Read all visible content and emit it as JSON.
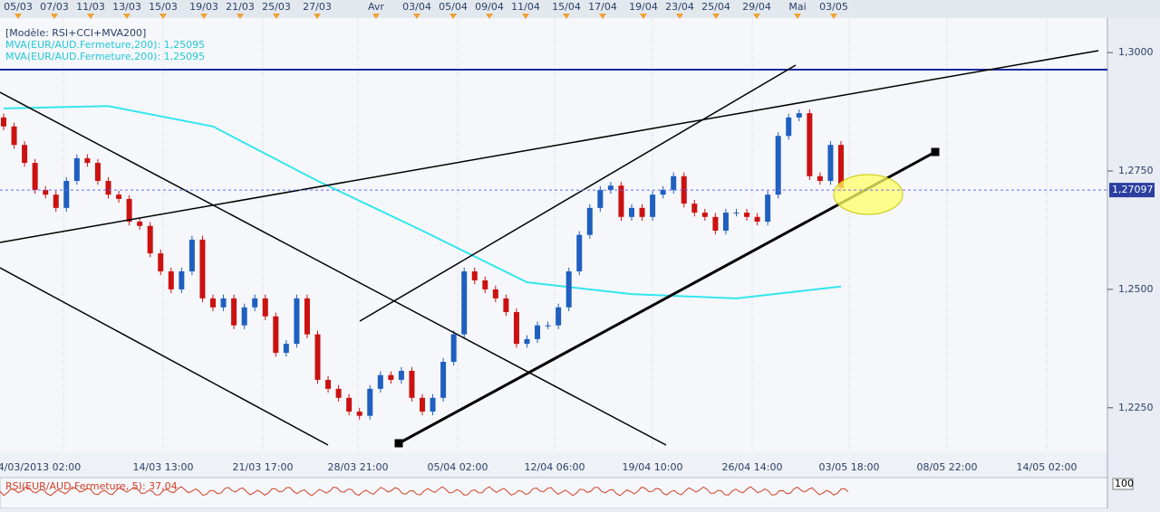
{
  "chart_data": {
    "type": "candlestick",
    "header": [
      "[Modèle: RSI+CCI+MVA200]",
      "MVA(EUR/AUD.Fermeture,200): 1,25095",
      "MVA(EUR/AUD.Fermeture,200): 1,25095"
    ],
    "top_labels": [
      "05/03",
      "07/03",
      "11/03",
      "13/03",
      "15/03",
      "19/03",
      "21/03",
      "25/03",
      "27/03",
      "Avr",
      "03/04",
      "05/04",
      "09/04",
      "11/04",
      "15/04",
      "17/04",
      "19/04",
      "23/04",
      "25/04",
      "29/04",
      "Mai",
      "03/05"
    ],
    "bottom_labels": [
      "04/03/2013 02:00",
      "14/03 13:00",
      "21/03 17:00",
      "28/03 21:00",
      "05/04 02:00",
      "12/04 06:00",
      "19/04 10:00",
      "26/04 14:00",
      "03/05 18:00",
      "08/05 22:00",
      "14/05 02:00"
    ],
    "ylim": [
      1.2156,
      1.3111
    ],
    "yticks": [
      {
        "value": 1.225,
        "label": "1,2250"
      },
      {
        "value": 1.25,
        "label": "1,2500"
      },
      {
        "value": 1.275,
        "label": "1,2750"
      },
      {
        "value": 1.3,
        "label": "1,3000"
      }
    ],
    "up_color": "#1f5fbf",
    "down_color": "#cc1111",
    "open": [
      1.2863,
      1.2844,
      1.2805,
      1.2767,
      1.271,
      1.27,
      1.2672,
      1.2729,
      1.2777,
      1.2767,
      1.2729,
      1.27,
      1.2691,
      1.2643,
      1.2634,
      1.2576,
      1.2538,
      1.25,
      1.2538,
      1.2605,
      1.2481,
      1.2462,
      1.2481,
      1.2424,
      1.2462,
      1.2481,
      1.2443,
      1.2366,
      1.2385,
      1.2481,
      1.2405,
      1.2309,
      1.229,
      1.2271,
      1.2242,
      1.2233,
      1.229,
      1.2319,
      1.2309,
      1.2328,
      1.2271,
      1.2242,
      1.2271,
      1.2347,
      1.2405,
      1.2538,
      1.2519,
      1.25,
      1.2481,
      1.2452,
      1.2385,
      1.2395,
      1.2424,
      1.2424,
      1.2462,
      1.2538,
      1.2615,
      1.2672,
      1.271,
      1.2719,
      1.2653,
      1.2672,
      1.2653,
      1.27,
      1.271,
      1.2739,
      1.2681,
      1.2662,
      1.2653,
      1.2624,
      1.2662,
      1.2662,
      1.2653,
      1.2643,
      1.27,
      1.2824,
      1.2863,
      1.2872,
      1.2739,
      1.2729,
      1.2805
    ],
    "high": [
      1.2871,
      1.2852,
      1.2813,
      1.2775,
      1.2718,
      1.2708,
      1.2737,
      1.2785,
      1.2785,
      1.2775,
      1.2737,
      1.2708,
      1.2699,
      1.2651,
      1.2642,
      1.2584,
      1.2546,
      1.2546,
      1.2613,
      1.2613,
      1.2489,
      1.2489,
      1.2489,
      1.247,
      1.2489,
      1.2489,
      1.2451,
      1.2393,
      1.2489,
      1.2489,
      1.2413,
      1.2317,
      1.2298,
      1.2279,
      1.225,
      1.2298,
      1.2327,
      1.2327,
      1.2336,
      1.2336,
      1.2279,
      1.2279,
      1.2355,
      1.2413,
      1.2546,
      1.2546,
      1.2527,
      1.2508,
      1.2489,
      1.246,
      1.2403,
      1.2432,
      1.2432,
      1.247,
      1.2546,
      1.2623,
      1.268,
      1.2718,
      1.2727,
      1.2727,
      1.268,
      1.268,
      1.2708,
      1.2718,
      1.2747,
      1.2747,
      1.2689,
      1.267,
      1.2661,
      1.267,
      1.267,
      1.267,
      1.2661,
      1.2708,
      1.2832,
      1.2871,
      1.288,
      1.288,
      1.2747,
      1.2813,
      1.2813
    ],
    "low": [
      1.2836,
      1.2797,
      1.2759,
      1.2702,
      1.2692,
      1.2664,
      1.2664,
      1.2721,
      1.2759,
      1.2721,
      1.2692,
      1.2683,
      1.2635,
      1.2626,
      1.2568,
      1.253,
      1.2492,
      1.2492,
      1.253,
      1.2473,
      1.2454,
      1.2454,
      1.2416,
      1.2416,
      1.2454,
      1.2435,
      1.2358,
      1.2358,
      1.2377,
      1.2397,
      1.2301,
      1.2282,
      1.2263,
      1.2234,
      1.2225,
      1.2225,
      1.2282,
      1.2301,
      1.2301,
      1.2263,
      1.2234,
      1.2234,
      1.2263,
      1.2339,
      1.2397,
      1.2511,
      1.2492,
      1.2473,
      1.2444,
      1.2377,
      1.2377,
      1.2387,
      1.2416,
      1.2416,
      1.2454,
      1.253,
      1.2607,
      1.2664,
      1.2702,
      1.2645,
      1.2645,
      1.2645,
      1.2645,
      1.2692,
      1.2702,
      1.2673,
      1.2654,
      1.2645,
      1.2616,
      1.2616,
      1.2654,
      1.2645,
      1.2635,
      1.2635,
      1.2692,
      1.2816,
      1.2855,
      1.2731,
      1.2721,
      1.2721,
      1.2706
    ],
    "close": [
      1.2844,
      1.2805,
      1.2767,
      1.271,
      1.27,
      1.2672,
      1.2729,
      1.2777,
      1.2767,
      1.2729,
      1.27,
      1.2691,
      1.2643,
      1.2634,
      1.2576,
      1.2538,
      1.25,
      1.2538,
      1.2605,
      1.2481,
      1.2462,
      1.2481,
      1.2424,
      1.2462,
      1.2481,
      1.2443,
      1.2366,
      1.2385,
      1.2481,
      1.2405,
      1.2309,
      1.229,
      1.2271,
      1.2242,
      1.2233,
      1.229,
      1.2319,
      1.2309,
      1.2328,
      1.2271,
      1.2242,
      1.2271,
      1.2347,
      1.2405,
      1.2538,
      1.2519,
      1.25,
      1.2481,
      1.2452,
      1.2385,
      1.2395,
      1.2424,
      1.2424,
      1.2462,
      1.2538,
      1.2615,
      1.2672,
      1.271,
      1.2719,
      1.2653,
      1.2672,
      1.2653,
      1.27,
      1.271,
      1.2739,
      1.2681,
      1.2662,
      1.2653,
      1.2624,
      1.2662,
      1.2662,
      1.2653,
      1.2643,
      1.27,
      1.2824,
      1.2863,
      1.2872,
      1.2739,
      1.2729,
      1.2805,
      1.2714
    ],
    "ma": {
      "color": "#33e6ee",
      "x": [
        0,
        10,
        20,
        30,
        40,
        50,
        60,
        70,
        80
      ],
      "values": [
        1.2882,
        1.2887,
        1.2844,
        1.2729,
        1.2624,
        1.2515,
        1.249,
        1.2481,
        1.2506
      ]
    },
    "last_price": {
      "value": 1.27097,
      "label": "1,27097"
    },
    "rsi_label": "RSI(EUR/AUD.Fermeture, 5): 37,04",
    "rsi_axis_label": "100"
  }
}
